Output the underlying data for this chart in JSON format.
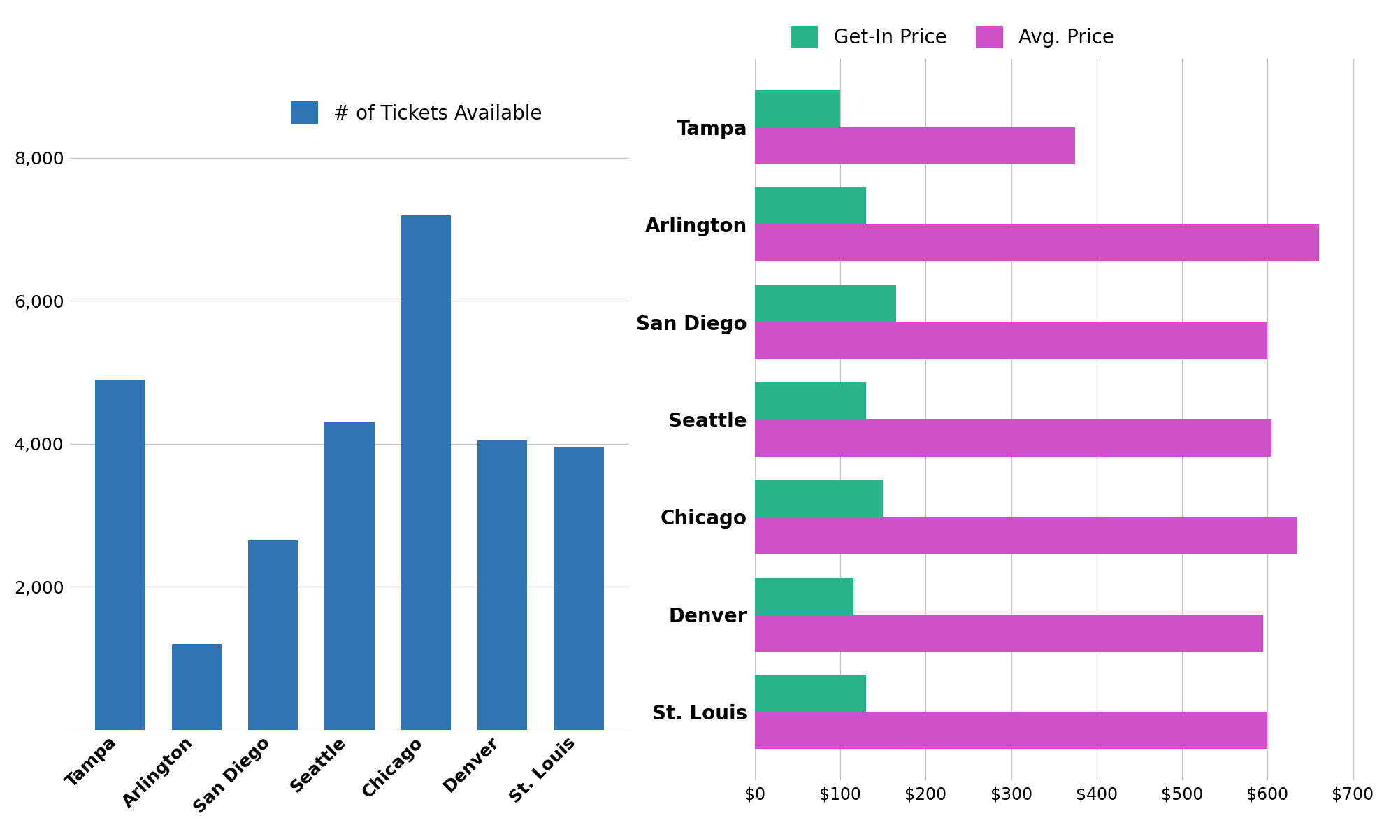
{
  "cities": [
    "Tampa",
    "Arlington",
    "San Diego",
    "Seattle",
    "Chicago",
    "Denver",
    "St. Louis"
  ],
  "tickets": [
    4900,
    1200,
    2650,
    4300,
    7200,
    4050,
    3950
  ],
  "bar_color": "#2e75b6",
  "get_in_prices": [
    100,
    130,
    165,
    130,
    150,
    115,
    130
  ],
  "avg_prices": [
    375,
    660,
    600,
    605,
    635,
    595,
    600
  ],
  "get_in_color": "#2ab48a",
  "avg_color": "#d050c8",
  "left_legend_label": "# of Tickets Available",
  "right_legend_labels": [
    "Get-In Price",
    "Avg. Price"
  ],
  "left_ylim": [
    0,
    8800
  ],
  "left_yticks": [
    0,
    2000,
    4000,
    6000,
    8000
  ],
  "right_xlim": [
    0,
    720
  ],
  "right_xticks": [
    0,
    100,
    200,
    300,
    400,
    500,
    600,
    700
  ],
  "background_color": "#ffffff",
  "grid_color": "#c8c8c8"
}
